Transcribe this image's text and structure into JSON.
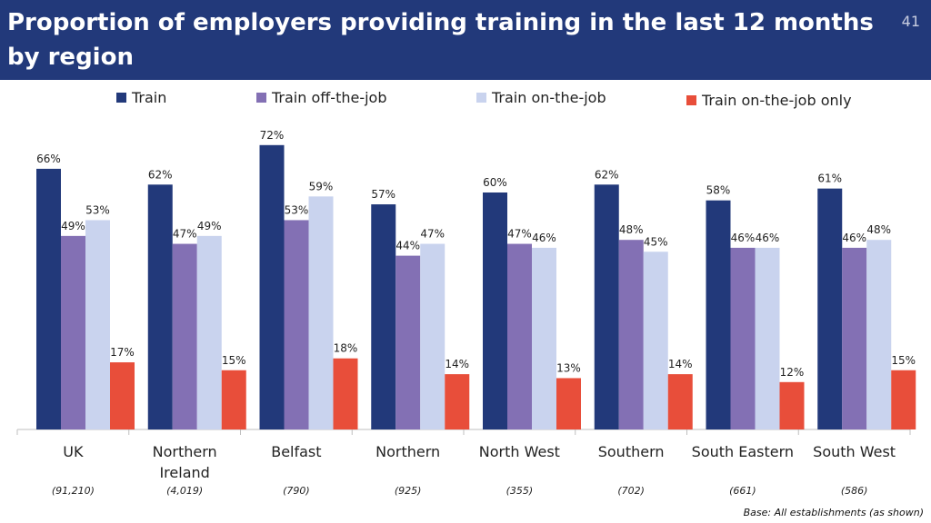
{
  "header": {
    "title": "Proportion of employers providing training in the last 12 months by region",
    "page_number": "41"
  },
  "footer": {
    "base_note": "Base: All establishments (as shown)"
  },
  "colors": {
    "header_bg": "#22397a",
    "train": "#22397a",
    "train_off_the_job": "#8370b4",
    "train_on_the_job": "#c9d3ee",
    "train_on_the_job_only": "#e84e3a"
  },
  "chart_data": {
    "type": "bar",
    "categories": [
      "UK",
      "Northern Ireland",
      "Belfast",
      "Northern",
      "North West",
      "Southern",
      "South Eastern",
      "South West"
    ],
    "category_bases": [
      "(91,210)",
      "(4,019)",
      "(790)",
      "(925)",
      "(355)",
      "(702)",
      "(661)",
      "(586)"
    ],
    "series": [
      {
        "name": "Train",
        "values": [
          66,
          62,
          72,
          57,
          60,
          62,
          58,
          61
        ]
      },
      {
        "name": "Train off-the-job",
        "values": [
          49,
          47,
          53,
          44,
          47,
          48,
          46,
          46
        ]
      },
      {
        "name": "Train on-the-job",
        "values": [
          53,
          49,
          59,
          47,
          46,
          45,
          46,
          48
        ]
      },
      {
        "name": "Train on-the-job only",
        "values": [
          17,
          15,
          18,
          14,
          13,
          14,
          12,
          15
        ]
      }
    ],
    "value_suffix": "%",
    "ylim": [
      0,
      75
    ],
    "grid": false,
    "legend_position": "top"
  }
}
